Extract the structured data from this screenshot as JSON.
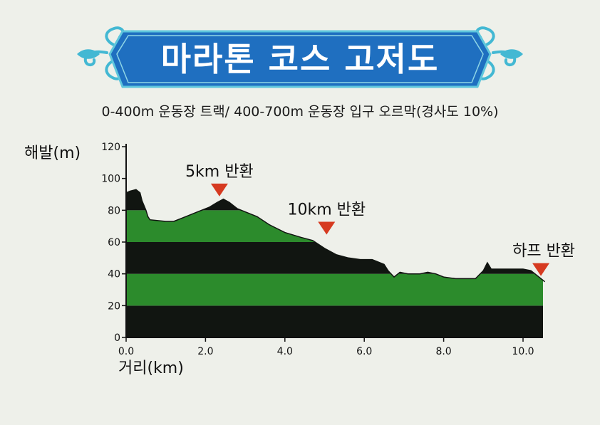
{
  "banner": {
    "title": "마라톤 코스 고저도"
  },
  "subtitle": "0-400m 운동장 트랙/ 400-700m 운동장 입구 오르막(경사도 10%)",
  "colors": {
    "banner_blue": "#1f6fc0",
    "ornament": "#43b8d3",
    "green": "#2c8b2c",
    "dark": "#111511",
    "marker": "#d63a20"
  },
  "chart_data": {
    "type": "area",
    "xlabel": "거리(km)",
    "ylabel": "해발(m)",
    "xlim": [
      0,
      10.8
    ],
    "ylim": [
      0,
      120
    ],
    "xticks": [
      0,
      2,
      4,
      6,
      8,
      10
    ],
    "xtick_labels": [
      "0.0",
      "2.0",
      "4.0",
      "6.0",
      "8.0",
      "10.0"
    ],
    "yticks": [
      0,
      20,
      40,
      60,
      80,
      100,
      120
    ],
    "ytick_labels": [
      "0",
      "20",
      "40",
      "60",
      "80",
      "100",
      "120"
    ],
    "bands": [
      {
        "from": 0,
        "to": 20,
        "color": "dark"
      },
      {
        "from": 20,
        "to": 40,
        "color": "green"
      },
      {
        "from": 40,
        "to": 60,
        "color": "dark"
      },
      {
        "from": 60,
        "to": 80,
        "color": "green"
      },
      {
        "from": 80,
        "to": 100,
        "color": "dark"
      },
      {
        "from": 100,
        "to": 120,
        "color": "green"
      }
    ],
    "series": [
      {
        "x": [
          0,
          0.1,
          0.25,
          0.35,
          0.4,
          0.5,
          0.55,
          0.6,
          1.0,
          1.2,
          1.5,
          1.8,
          2.1,
          2.3,
          2.45,
          2.6,
          2.8,
          3.0,
          3.3,
          3.6,
          4.0,
          4.4,
          4.7,
          5.0,
          5.3,
          5.6,
          5.9,
          6.2,
          6.5,
          6.6,
          6.75,
          6.9,
          7.1,
          7.4,
          7.6,
          7.8,
          8.0,
          8.3,
          8.6,
          8.8,
          9.0,
          9.1,
          9.2,
          9.4,
          9.7,
          10.0,
          10.2,
          10.4,
          10.55
        ],
        "y": [
          91,
          92,
          93,
          91,
          86,
          80,
          76,
          74,
          73,
          73,
          76,
          79,
          82,
          85,
          87,
          85,
          81,
          79,
          76,
          71,
          66,
          63,
          61,
          56,
          52,
          50,
          49,
          49,
          46,
          42,
          38,
          41,
          40,
          40,
          41,
          40,
          38,
          37,
          37,
          37,
          42,
          47,
          43,
          43,
          43,
          43,
          42,
          38,
          35
        ]
      }
    ],
    "annotations": [
      {
        "text": "5km 반환",
        "x": 2.35,
        "y": 86
      },
      {
        "text": "10km 반환",
        "x": 5.05,
        "y": 62
      },
      {
        "text": "하프 반환",
        "x": 10.45,
        "y": 36
      }
    ]
  }
}
